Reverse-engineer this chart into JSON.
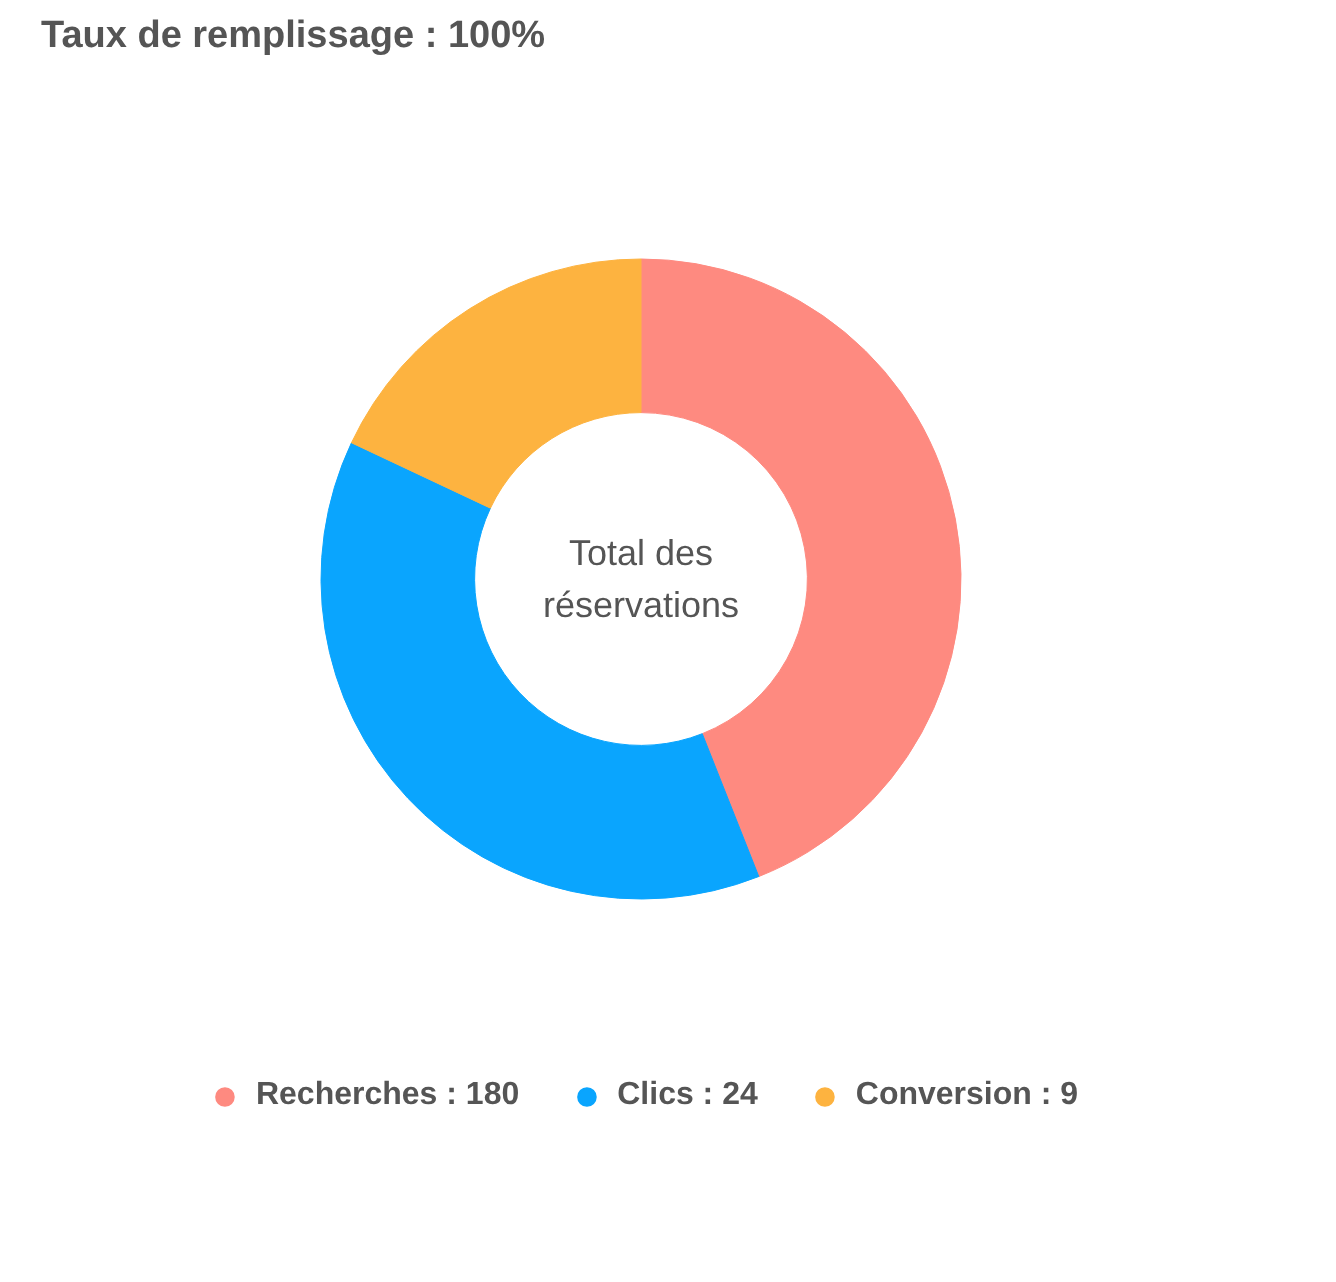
{
  "chart_data": {
    "type": "donut",
    "title": "Taux de remplissage : 100%",
    "categories": [
      "Recherches : 180",
      "Clics : 24",
      "Conversion : 9"
    ],
    "values": [
      44,
      38,
      18
    ],
    "colors": [
      "#fe8a80",
      "#0aa5fe",
      "#fdb340"
    ],
    "annotations": [
      "Total des\nréservations"
    ],
    "legend": "bottom"
  }
}
